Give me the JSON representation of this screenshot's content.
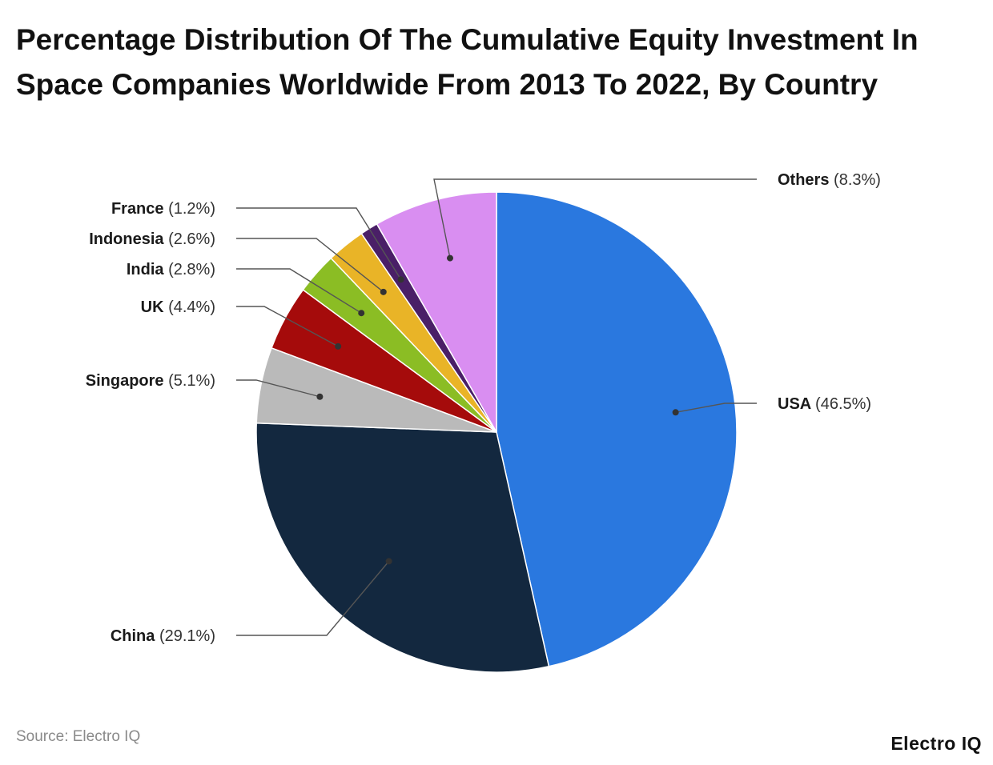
{
  "title": "Percentage Distribution Of The Cumulative Equity Investment In Space Companies Worldwide From 2013 To 2022, By Country",
  "source": "Source: Electro IQ",
  "brand": "Electro IQ",
  "chart_data": {
    "type": "pie",
    "title": "Percentage Distribution Of The Cumulative Equity Investment In Space Companies Worldwide From 2013 To 2022, By Country",
    "start_direction": "12 o'clock, clockwise",
    "slices": [
      {
        "label": "USA",
        "value": 46.5,
        "display": "(46.5%)",
        "color": "#2a78df"
      },
      {
        "label": "China",
        "value": 29.1,
        "display": "(29.1%)",
        "color": "#13283f"
      },
      {
        "label": "Singapore",
        "value": 5.1,
        "display": "(5.1%)",
        "color": "#bababa"
      },
      {
        "label": "UK",
        "value": 4.4,
        "display": "(4.4%)",
        "color": "#a50b0b"
      },
      {
        "label": "India",
        "value": 2.8,
        "display": "(2.8%)",
        "color": "#8bbd24"
      },
      {
        "label": "Indonesia",
        "value": 2.6,
        "display": "(2.6%)",
        "color": "#e9b427"
      },
      {
        "label": "France",
        "value": 1.2,
        "display": "(1.2%)",
        "color": "#4a1f67"
      },
      {
        "label": "Others",
        "value": 8.3,
        "display": "(8.3%)",
        "color": "#d98ef1"
      }
    ]
  }
}
